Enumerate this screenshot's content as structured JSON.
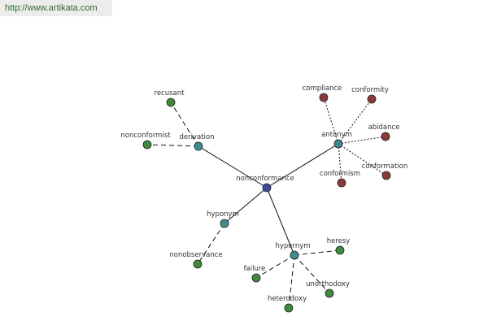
{
  "header": {
    "url": "http://www.artikata.com"
  },
  "nodes": [
    {
      "label": "nonconformance"
    },
    {
      "label": "derivation"
    },
    {
      "label": "recusant"
    },
    {
      "label": "nonconformist"
    },
    {
      "label": "antonym"
    },
    {
      "label": "compliance"
    },
    {
      "label": "conformity"
    },
    {
      "label": "abidance"
    },
    {
      "label": "conformation"
    },
    {
      "label": "conformism"
    },
    {
      "label": "hyponym"
    },
    {
      "label": "nonobservance"
    },
    {
      "label": "hypernym"
    },
    {
      "label": "heresy"
    },
    {
      "label": "failure"
    },
    {
      "label": "heterodoxy"
    },
    {
      "label": "unorthodoxy"
    }
  ]
}
